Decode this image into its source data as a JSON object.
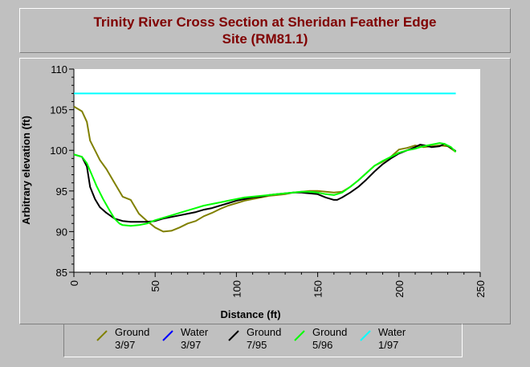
{
  "title_line1": "Trinity River Cross Section at Sheridan Feather Edge",
  "title_line2": "Site (RM81.1)",
  "chart_data": {
    "type": "line",
    "xlabel": "Distance (ft)",
    "ylabel": "Arbitrary elevation (ft)",
    "xlim": [
      0,
      250
    ],
    "ylim": [
      85,
      110
    ],
    "xticks": [
      0,
      50,
      100,
      150,
      200,
      250
    ],
    "yticks": [
      85,
      90,
      95,
      100,
      105,
      110
    ],
    "grid": false,
    "legend_position": "bottom",
    "series": [
      {
        "name": "Ground",
        "name2": "3/97",
        "color": "#808000",
        "x": [
          0,
          5,
          8,
          10,
          13,
          16,
          20,
          25,
          30,
          35,
          40,
          45,
          50,
          55,
          60,
          65,
          70,
          75,
          80,
          85,
          90,
          95,
          100,
          105,
          110,
          115,
          120,
          125,
          130,
          135,
          140,
          145,
          150,
          155,
          160,
          165,
          170,
          175,
          180,
          185,
          190,
          195,
          200,
          205,
          210,
          215,
          220,
          225,
          230,
          235
        ],
        "y": [
          105.4,
          104.8,
          103.5,
          101.2,
          100.0,
          98.8,
          97.7,
          96.0,
          94.3,
          93.9,
          92.2,
          91.3,
          90.5,
          90.0,
          90.1,
          90.5,
          91.0,
          91.3,
          91.9,
          92.3,
          92.8,
          93.2,
          93.5,
          93.8,
          94.0,
          94.2,
          94.4,
          94.5,
          94.6,
          94.8,
          94.9,
          95.0,
          95.0,
          94.9,
          94.8,
          94.9,
          95.5,
          96.3,
          97.2,
          98.1,
          98.6,
          99.2,
          100.1,
          100.3,
          100.6,
          100.4,
          100.5,
          100.6,
          100.5,
          99.8
        ]
      },
      {
        "name": "Water",
        "name2": "3/97",
        "color": "#0000ff",
        "x": [],
        "y": []
      },
      {
        "name": "Ground",
        "name2": "7/95",
        "color": "#000000",
        "x": [
          0,
          5,
          8,
          10,
          13,
          16,
          20,
          25,
          30,
          35,
          40,
          45,
          50,
          55,
          60,
          65,
          70,
          75,
          80,
          85,
          90,
          95,
          100,
          105,
          110,
          115,
          120,
          125,
          130,
          135,
          140,
          145,
          150,
          155,
          160,
          162,
          165,
          170,
          175,
          180,
          185,
          190,
          195,
          200,
          205,
          210,
          213,
          216,
          220,
          225,
          228,
          232,
          235
        ],
        "y": [
          99.5,
          99.2,
          98.0,
          95.5,
          94.0,
          93.0,
          92.3,
          91.6,
          91.3,
          91.2,
          91.2,
          91.2,
          91.3,
          91.6,
          91.8,
          92.0,
          92.2,
          92.4,
          92.7,
          92.9,
          93.2,
          93.5,
          93.8,
          94.0,
          94.2,
          94.3,
          94.5,
          94.6,
          94.7,
          94.8,
          94.8,
          94.7,
          94.6,
          94.2,
          93.9,
          93.9,
          94.2,
          94.8,
          95.5,
          96.4,
          97.4,
          98.3,
          99.0,
          99.6,
          100.0,
          100.4,
          100.7,
          100.6,
          100.4,
          100.5,
          100.8,
          100.3,
          99.9
        ]
      },
      {
        "name": "Ground",
        "name2": "5/96",
        "color": "#00ff00",
        "x": [
          0,
          5,
          8,
          11,
          14,
          18,
          22,
          25,
          28,
          30,
          35,
          40,
          45,
          50,
          55,
          60,
          65,
          70,
          75,
          80,
          85,
          90,
          95,
          100,
          105,
          110,
          115,
          120,
          125,
          130,
          135,
          140,
          145,
          150,
          155,
          160,
          165,
          170,
          175,
          180,
          185,
          190,
          195,
          200,
          205,
          210,
          215,
          220,
          225,
          228,
          232,
          235
        ],
        "y": [
          99.5,
          99.2,
          98.4,
          97.0,
          95.6,
          94.0,
          92.6,
          91.6,
          91.0,
          90.8,
          90.7,
          90.8,
          91.0,
          91.4,
          91.7,
          92.0,
          92.3,
          92.6,
          92.9,
          93.2,
          93.4,
          93.6,
          93.8,
          94.0,
          94.2,
          94.3,
          94.4,
          94.5,
          94.6,
          94.7,
          94.8,
          94.9,
          94.9,
          94.8,
          94.6,
          94.5,
          94.8,
          95.5,
          96.3,
          97.2,
          98.1,
          98.7,
          99.2,
          99.7,
          100.0,
          100.2,
          100.5,
          100.7,
          100.9,
          100.8,
          100.4,
          99.8
        ]
      },
      {
        "name": "Water",
        "name2": "1/97",
        "color": "#00ffff",
        "x": [
          0,
          235
        ],
        "y": [
          107.0,
          107.0
        ]
      }
    ]
  }
}
